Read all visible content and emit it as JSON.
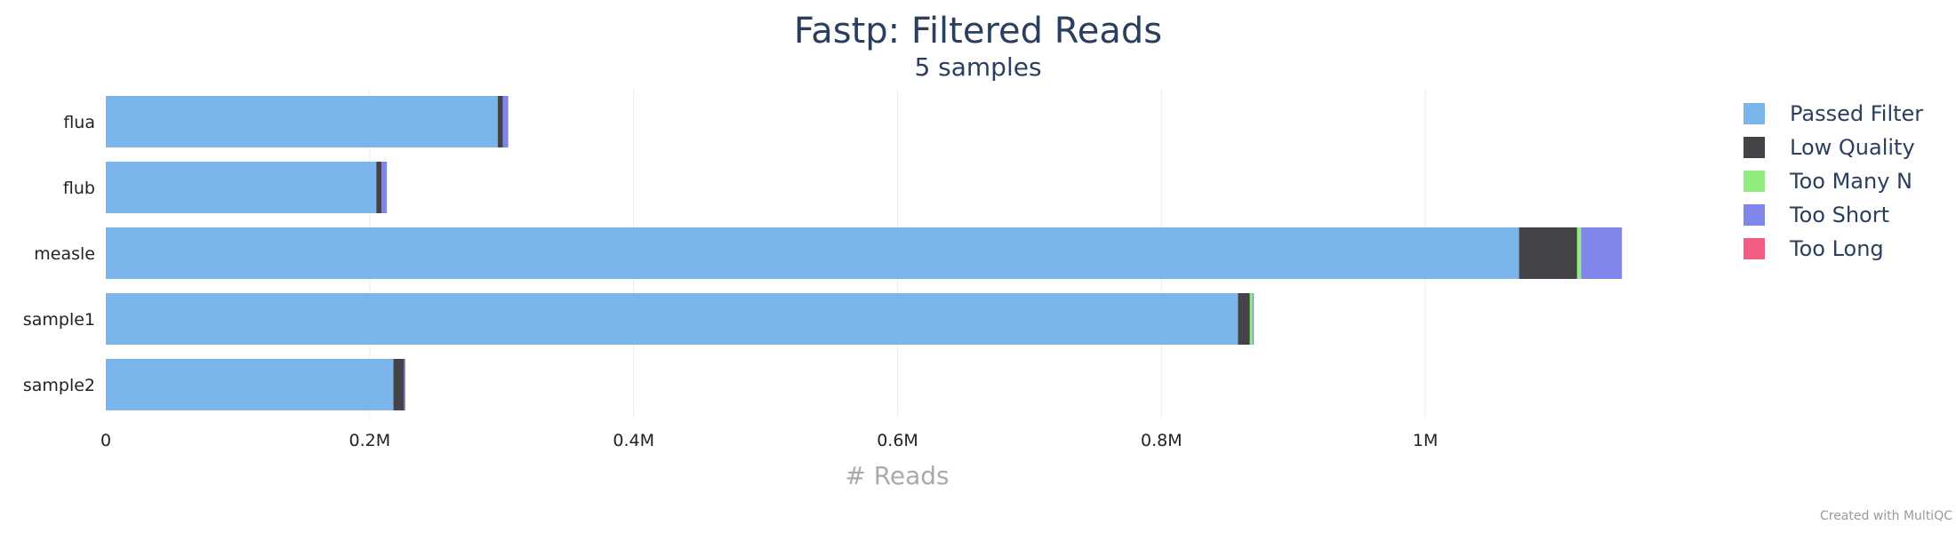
{
  "credit": "Created with MultiQC",
  "chart_data": {
    "type": "bar",
    "orientation": "horizontal",
    "stacked": true,
    "title": "Fastp: Filtered Reads",
    "subtitle": "5 samples",
    "xlabel": "# Reads",
    "ylabel": "",
    "xlim": [
      0,
      1200000
    ],
    "x_ticks": [
      0,
      200000,
      400000,
      600000,
      800000,
      1000000
    ],
    "x_tick_labels": [
      "0",
      "0.2M",
      "0.4M",
      "0.6M",
      "0.8M",
      "1M"
    ],
    "grid": true,
    "legend_position": "top-right",
    "categories": [
      "flua",
      "flub",
      "measle",
      "sample1",
      "sample2"
    ],
    "series": [
      {
        "name": "Passed Filter",
        "color": "#7cb5ec",
        "values": [
          297000,
          205000,
          1071000,
          858000,
          218000
        ]
      },
      {
        "name": "Low Quality",
        "color": "#434348",
        "values": [
          4000,
          4000,
          44000,
          9000,
          8000
        ]
      },
      {
        "name": "Too Many N",
        "color": "#90ed7d",
        "values": [
          0,
          0,
          3000,
          2000,
          0
        ]
      },
      {
        "name": "Too Short",
        "color": "#8085e9",
        "values": [
          4000,
          4000,
          31000,
          1000,
          1000
        ]
      },
      {
        "name": "Too Long",
        "color": "#f15c80",
        "values": [
          0,
          0,
          0,
          0,
          0
        ]
      }
    ]
  }
}
